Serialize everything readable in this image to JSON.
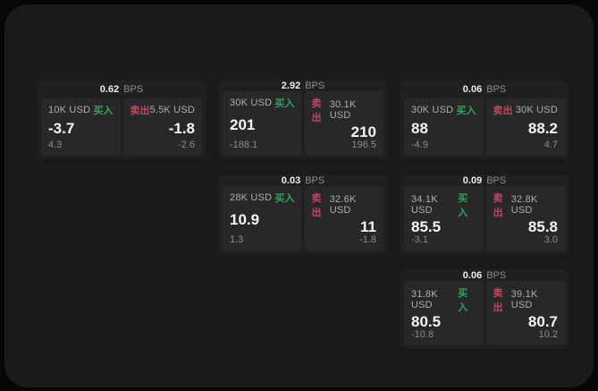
{
  "labels": {
    "unit": "BPS",
    "buy": "买入",
    "sell": "卖出"
  },
  "colors": {
    "background": "#070707",
    "panel": "#1a1a1a",
    "card": "#202020",
    "subpanel": "#282828",
    "buy_accent": "#32a45a",
    "sell_accent": "#c5465f",
    "primary_text": "#f5f5f5",
    "muted_text": "#8c8c8c"
  },
  "cards": [
    {
      "col": 1,
      "row": 1,
      "bps": "0.62",
      "buy": {
        "amount": "10K USD",
        "value": "-3.7",
        "delta": "4.3"
      },
      "sell": {
        "amount": "5.5K USD",
        "value": "-1.8",
        "delta": "-2.6"
      }
    },
    {
      "col": 2,
      "row": 1,
      "bps": "2.92",
      "buy": {
        "amount": "30K USD",
        "value": "201",
        "delta": "-188.1"
      },
      "sell": {
        "amount": "30.1K USD",
        "value": "210",
        "delta": "196.5"
      }
    },
    {
      "col": 3,
      "row": 1,
      "bps": "0.06",
      "buy": {
        "amount": "30K USD",
        "value": "88",
        "delta": "-4.9"
      },
      "sell": {
        "amount": "30K USD",
        "value": "88.2",
        "delta": "4.7"
      }
    },
    {
      "col": 2,
      "row": 2,
      "bps": "0.03",
      "buy": {
        "amount": "28K USD",
        "value": "10.9",
        "delta": "1.3"
      },
      "sell": {
        "amount": "32.6K USD",
        "value": "11",
        "delta": "-1.8"
      }
    },
    {
      "col": 3,
      "row": 2,
      "bps": "0.09",
      "buy": {
        "amount": "34.1K USD",
        "value": "85.5",
        "delta": "-3.1"
      },
      "sell": {
        "amount": "32.8K USD",
        "value": "85.8",
        "delta": "3.0"
      }
    },
    {
      "col": 3,
      "row": 3,
      "bps": "0.06",
      "buy": {
        "amount": "31.8K USD",
        "value": "80.5",
        "delta": "-10.8"
      },
      "sell": {
        "amount": "39.1K USD",
        "value": "80.7",
        "delta": "10.2"
      }
    }
  ]
}
